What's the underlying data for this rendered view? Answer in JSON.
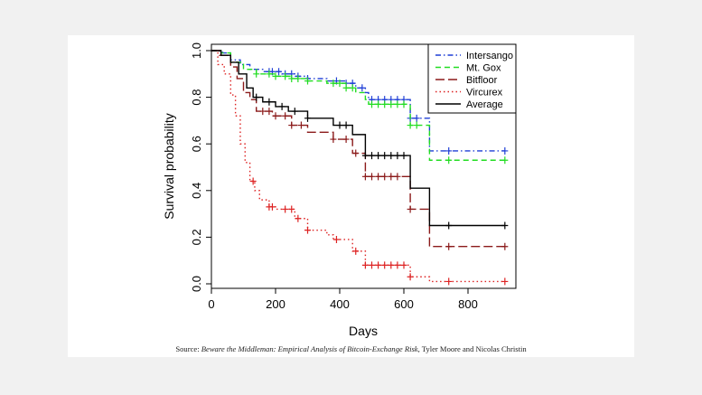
{
  "chart_data": {
    "type": "line",
    "xlabel": "Days",
    "ylabel": "Survival probability",
    "xlim": [
      0,
      950
    ],
    "ylim": [
      0,
      1
    ],
    "x_ticks": [
      0,
      200,
      400,
      600,
      800
    ],
    "x_tick_labels": [
      "0",
      "200",
      "400",
      "600",
      "800"
    ],
    "y_ticks": [
      0,
      0.2,
      0.4,
      0.6,
      0.8,
      1
    ],
    "y_tick_labels": [
      "0.0",
      "0.2",
      "0.4",
      "0.6",
      "0.8",
      "1.0"
    ],
    "legend_position": "top-right",
    "grid": false,
    "series": [
      {
        "name": "Intersango",
        "color": "#1f3fd6",
        "dash": "dotdash",
        "steps": [
          [
            0,
            1.0
          ],
          [
            35,
            0.99
          ],
          [
            60,
            0.96
          ],
          [
            90,
            0.94
          ],
          [
            120,
            0.92
          ],
          [
            160,
            0.91
          ],
          [
            220,
            0.9
          ],
          [
            260,
            0.89
          ],
          [
            300,
            0.88
          ],
          [
            360,
            0.87
          ],
          [
            420,
            0.86
          ],
          [
            450,
            0.84
          ],
          [
            480,
            0.82
          ],
          [
            490,
            0.79
          ],
          [
            620,
            0.71
          ],
          [
            680,
            0.57
          ],
          [
            915,
            0.57
          ]
        ],
        "censor_x": [
          180,
          190,
          210,
          230,
          250,
          270,
          300,
          390,
          420,
          440,
          470,
          500,
          520,
          540,
          560,
          580,
          600,
          620,
          640,
          740,
          915
        ]
      },
      {
        "name": "Mt. Gox",
        "color": "#22dd22",
        "dash": "dash",
        "steps": [
          [
            0,
            1.0
          ],
          [
            30,
            0.99
          ],
          [
            60,
            0.95
          ],
          [
            100,
            0.92
          ],
          [
            140,
            0.9
          ],
          [
            200,
            0.89
          ],
          [
            250,
            0.88
          ],
          [
            300,
            0.87
          ],
          [
            360,
            0.86
          ],
          [
            420,
            0.84
          ],
          [
            450,
            0.82
          ],
          [
            480,
            0.79
          ],
          [
            490,
            0.77
          ],
          [
            620,
            0.68
          ],
          [
            680,
            0.53
          ],
          [
            915,
            0.53
          ]
        ],
        "censor_x": [
          140,
          180,
          200,
          230,
          250,
          270,
          300,
          380,
          400,
          420,
          440,
          500,
          520,
          540,
          560,
          580,
          600,
          620,
          640,
          740,
          915
        ]
      },
      {
        "name": "Bitfloor",
        "color": "#8b1a1a",
        "dash": "longdash",
        "steps": [
          [
            0,
            1.0
          ],
          [
            25,
            0.98
          ],
          [
            60,
            0.93
          ],
          [
            80,
            0.88
          ],
          [
            100,
            0.82
          ],
          [
            120,
            0.79
          ],
          [
            140,
            0.74
          ],
          [
            190,
            0.72
          ],
          [
            250,
            0.68
          ],
          [
            300,
            0.65
          ],
          [
            380,
            0.62
          ],
          [
            440,
            0.56
          ],
          [
            480,
            0.46
          ],
          [
            620,
            0.32
          ],
          [
            680,
            0.16
          ],
          [
            915,
            0.16
          ]
        ],
        "censor_x": [
          160,
          180,
          200,
          230,
          250,
          280,
          380,
          420,
          450,
          480,
          500,
          520,
          540,
          560,
          580,
          620,
          740,
          915
        ]
      },
      {
        "name": "Vircurex",
        "color": "#dd2222",
        "dash": "dot",
        "steps": [
          [
            0,
            1.0
          ],
          [
            20,
            0.94
          ],
          [
            40,
            0.9
          ],
          [
            60,
            0.81
          ],
          [
            75,
            0.72
          ],
          [
            90,
            0.6
          ],
          [
            105,
            0.52
          ],
          [
            120,
            0.44
          ],
          [
            135,
            0.4
          ],
          [
            150,
            0.36
          ],
          [
            180,
            0.33
          ],
          [
            200,
            0.32
          ],
          [
            260,
            0.28
          ],
          [
            300,
            0.23
          ],
          [
            360,
            0.21
          ],
          [
            380,
            0.19
          ],
          [
            440,
            0.14
          ],
          [
            480,
            0.08
          ],
          [
            620,
            0.03
          ],
          [
            680,
            0.01
          ],
          [
            915,
            0.01
          ]
        ],
        "censor_x": [
          130,
          180,
          190,
          230,
          250,
          270,
          300,
          390,
          450,
          480,
          500,
          520,
          540,
          560,
          580,
          600,
          620,
          740,
          915
        ]
      },
      {
        "name": "Average",
        "color": "#000000",
        "dash": "solid",
        "steps": [
          [
            0,
            1.0
          ],
          [
            30,
            0.98
          ],
          [
            60,
            0.95
          ],
          [
            85,
            0.9
          ],
          [
            110,
            0.84
          ],
          [
            130,
            0.8
          ],
          [
            160,
            0.78
          ],
          [
            200,
            0.76
          ],
          [
            240,
            0.74
          ],
          [
            300,
            0.71
          ],
          [
            380,
            0.68
          ],
          [
            440,
            0.64
          ],
          [
            480,
            0.55
          ],
          [
            620,
            0.41
          ],
          [
            680,
            0.25
          ],
          [
            915,
            0.25
          ]
        ],
        "censor_x": [
          140,
          180,
          220,
          260,
          300,
          400,
          420,
          480,
          500,
          520,
          540,
          560,
          580,
          600,
          740,
          915
        ]
      }
    ]
  },
  "source": {
    "prefix": "Source: ",
    "title": "Beware the Middleman: Empirical Analysis of Bitcoin-Exchange Risk",
    "suffix": ", Tyler Moore and Nicolas Christin"
  }
}
